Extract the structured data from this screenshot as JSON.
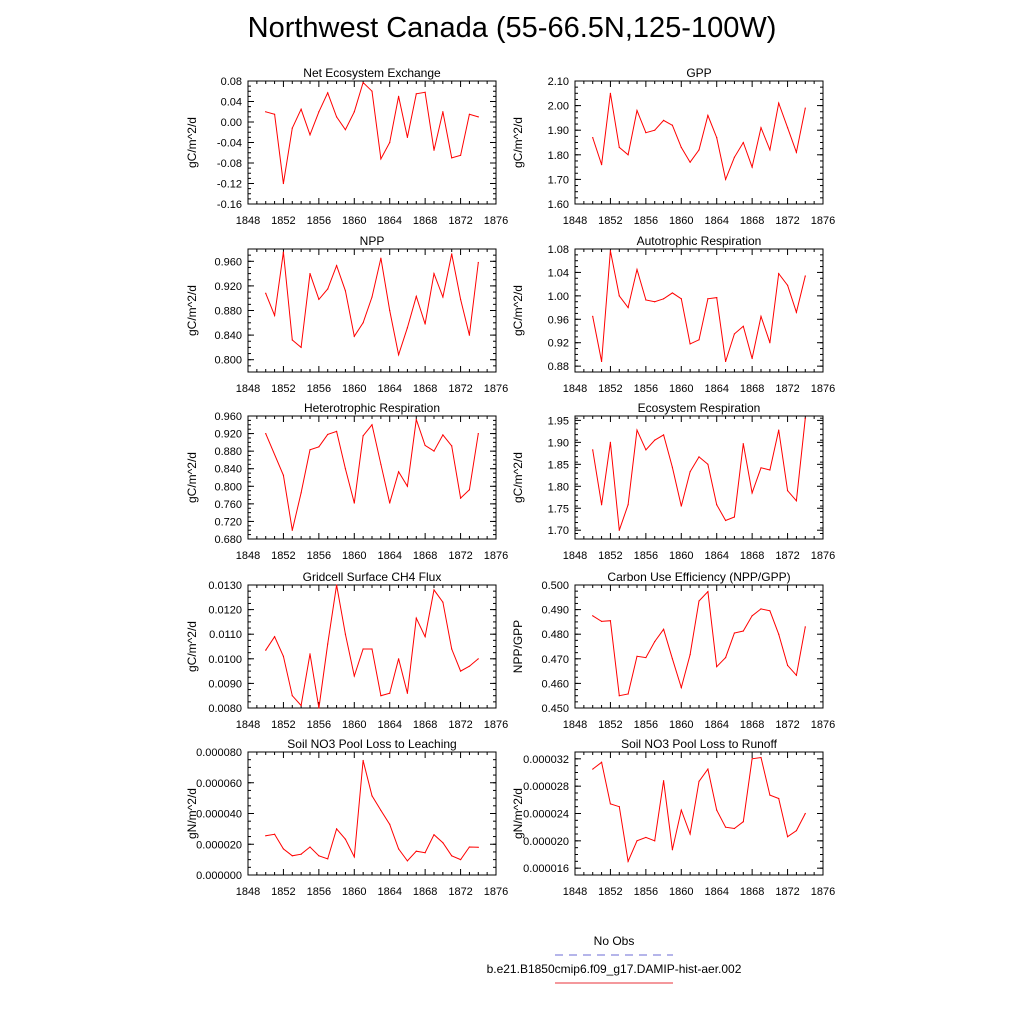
{
  "title": "Northwest Canada (55-66.5N,125-100W)",
  "legend": {
    "entries": [
      {
        "label": "No Obs",
        "color": "#6b6bd6",
        "dash": "dashed"
      },
      {
        "label": "b.e21.B1850cmip6.f09_g17.DAMIP-hist-aer.002",
        "color": "#e8303a",
        "dash": "solid"
      }
    ]
  },
  "chart_data": [
    {
      "type": "line",
      "title": "Net Ecosystem Exchange",
      "ylabel": "gC/m^2/d",
      "xlim": [
        1848,
        1876
      ],
      "xticks": [
        1848,
        1852,
        1856,
        1860,
        1864,
        1868,
        1872,
        1876
      ],
      "ylim": [
        -0.16,
        0.08
      ],
      "yticks": [
        "-0.16",
        "-0.12",
        "-0.08",
        "-0.04",
        "0.00",
        "0.04",
        "0.08"
      ],
      "series": [
        {
          "color": "#ff0000",
          "x": [
            1850,
            1851,
            1852,
            1853,
            1854,
            1855,
            1856,
            1857,
            1858,
            1859,
            1860,
            1861,
            1862,
            1863,
            1864,
            1865,
            1866,
            1867,
            1868,
            1869,
            1870,
            1871,
            1872,
            1873,
            1874
          ],
          "values": [
            0.02,
            0.015,
            -0.12,
            -0.012,
            0.025,
            -0.025,
            0.02,
            0.057,
            0.01,
            -0.015,
            0.02,
            0.077,
            0.06,
            -0.072,
            -0.04,
            0.05,
            -0.03,
            0.055,
            0.058,
            -0.055,
            0.02,
            -0.07,
            -0.065,
            0.015,
            0.01
          ]
        }
      ]
    },
    {
      "type": "line",
      "title": "GPP",
      "ylabel": "gC/m^2/d",
      "xlim": [
        1848,
        1876
      ],
      "xticks": [
        1848,
        1852,
        1856,
        1860,
        1864,
        1868,
        1872,
        1876
      ],
      "ylim": [
        1.6,
        2.1
      ],
      "yticks": [
        "1.60",
        "1.70",
        "1.80",
        "1.90",
        "2.00",
        "2.10"
      ],
      "series": [
        {
          "color": "#ff0000",
          "x": [
            1850,
            1851,
            1852,
            1853,
            1854,
            1855,
            1856,
            1857,
            1858,
            1859,
            1860,
            1861,
            1862,
            1863,
            1864,
            1865,
            1866,
            1867,
            1868,
            1869,
            1870,
            1871,
            1872,
            1873,
            1874
          ],
          "values": [
            1.87,
            1.76,
            2.05,
            1.83,
            1.8,
            1.98,
            1.89,
            1.9,
            1.94,
            1.92,
            1.83,
            1.77,
            1.82,
            1.96,
            1.87,
            1.7,
            1.79,
            1.85,
            1.75,
            1.91,
            1.82,
            2.01,
            1.91,
            1.81,
            1.99
          ]
        }
      ]
    },
    {
      "type": "line",
      "title": "NPP",
      "ylabel": "gC/m^2/d",
      "xlim": [
        1848,
        1876
      ],
      "xticks": [
        1848,
        1852,
        1856,
        1860,
        1864,
        1868,
        1872,
        1876
      ],
      "ylim": [
        0.78,
        0.98
      ],
      "yticks": [
        "0.800",
        "0.840",
        "0.880",
        "0.920",
        "0.960"
      ],
      "series": [
        {
          "color": "#ff0000",
          "x": [
            1850,
            1851,
            1852,
            1853,
            1854,
            1855,
            1856,
            1857,
            1858,
            1859,
            1860,
            1861,
            1862,
            1863,
            1864,
            1865,
            1866,
            1867,
            1868,
            1869,
            1870,
            1871,
            1872,
            1873,
            1874
          ],
          "values": [
            0.908,
            0.872,
            0.975,
            0.832,
            0.82,
            0.94,
            0.898,
            0.915,
            0.953,
            0.912,
            0.838,
            0.86,
            0.902,
            0.965,
            0.88,
            0.808,
            0.852,
            0.903,
            0.858,
            0.94,
            0.902,
            0.972,
            0.898,
            0.84,
            0.958
          ]
        }
      ]
    },
    {
      "type": "line",
      "title": "Autotrophic Respiration",
      "ylabel": "gC/m^2/d",
      "xlim": [
        1848,
        1876
      ],
      "xticks": [
        1848,
        1852,
        1856,
        1860,
        1864,
        1868,
        1872,
        1876
      ],
      "ylim": [
        0.87,
        1.08
      ],
      "yticks": [
        "0.88",
        "0.92",
        "0.96",
        "1.00",
        "1.04",
        "1.08"
      ],
      "series": [
        {
          "color": "#ff0000",
          "x": [
            1850,
            1851,
            1852,
            1853,
            1854,
            1855,
            1856,
            1857,
            1858,
            1859,
            1860,
            1861,
            1862,
            1863,
            1864,
            1865,
            1866,
            1867,
            1868,
            1869,
            1870,
            1871,
            1872,
            1873,
            1874
          ],
          "values": [
            0.965,
            0.888,
            1.077,
            1.0,
            0.98,
            1.045,
            0.993,
            0.99,
            0.995,
            1.005,
            0.995,
            0.918,
            0.925,
            0.995,
            0.997,
            0.888,
            0.935,
            0.948,
            0.893,
            0.965,
            0.92,
            1.038,
            1.018,
            0.972,
            1.034
          ]
        }
      ]
    },
    {
      "type": "line",
      "title": "Heterotrophic Respiration",
      "ylabel": "gC/m^2/d",
      "xlim": [
        1848,
        1876
      ],
      "xticks": [
        1848,
        1852,
        1856,
        1860,
        1864,
        1868,
        1872,
        1876
      ],
      "ylim": [
        0.68,
        0.96
      ],
      "yticks": [
        "0.680",
        "0.720",
        "0.760",
        "0.800",
        "0.840",
        "0.880",
        "0.920",
        "0.960"
      ],
      "series": [
        {
          "color": "#ff0000",
          "x": [
            1850,
            1852,
            1853,
            1854,
            1855,
            1856,
            1857,
            1858,
            1859,
            1860,
            1861,
            1862,
            1863,
            1864,
            1865,
            1866,
            1867,
            1868,
            1869,
            1870,
            1871,
            1872,
            1873,
            1874
          ],
          "values": [
            0.92,
            0.825,
            0.7,
            0.785,
            0.883,
            0.89,
            0.918,
            0.925,
            0.84,
            0.762,
            0.915,
            0.94,
            0.85,
            0.762,
            0.833,
            0.8,
            0.952,
            0.893,
            0.88,
            0.917,
            0.892,
            0.773,
            0.792,
            0.92
          ]
        }
      ]
    },
    {
      "type": "line",
      "title": "Ecosystem Respiration",
      "ylabel": "gC/m^2/d",
      "xlim": [
        1848,
        1876
      ],
      "xticks": [
        1848,
        1852,
        1856,
        1860,
        1864,
        1868,
        1872,
        1876
      ],
      "ylim": [
        1.68,
        1.96
      ],
      "yticks": [
        "1.70",
        "1.75",
        "1.80",
        "1.85",
        "1.90",
        "1.95"
      ],
      "series": [
        {
          "color": "#ff0000",
          "x": [
            1850,
            1851,
            1852,
            1853,
            1854,
            1855,
            1856,
            1857,
            1858,
            1859,
            1860,
            1861,
            1862,
            1863,
            1864,
            1865,
            1866,
            1867,
            1868,
            1869,
            1870,
            1871,
            1872,
            1873,
            1874
          ],
          "values": [
            1.883,
            1.758,
            1.9,
            1.7,
            1.758,
            1.928,
            1.883,
            1.905,
            1.917,
            1.843,
            1.755,
            1.833,
            1.867,
            1.85,
            1.758,
            1.722,
            1.73,
            1.897,
            1.785,
            1.842,
            1.837,
            1.928,
            1.79,
            1.767,
            1.955
          ]
        }
      ]
    },
    {
      "type": "line",
      "title": "Gridcell Surface CH4 Flux",
      "ylabel": "gC/m^2/d",
      "xlim": [
        1848,
        1876
      ],
      "xticks": [
        1848,
        1852,
        1856,
        1860,
        1864,
        1868,
        1872,
        1876
      ],
      "ylim": [
        0.008,
        0.013
      ],
      "yticks": [
        "0.0080",
        "0.0090",
        "0.0100",
        "0.0110",
        "0.0120",
        "0.0130"
      ],
      "series": [
        {
          "color": "#ff0000",
          "x": [
            1850,
            1851,
            1852,
            1853,
            1854,
            1855,
            1856,
            1857,
            1858,
            1859,
            1860,
            1861,
            1862,
            1863,
            1864,
            1865,
            1866,
            1867,
            1868,
            1869,
            1870,
            1871,
            1872,
            1873,
            1874
          ],
          "values": [
            0.01035,
            0.0109,
            0.0101,
            0.0085,
            0.0081,
            0.0102,
            0.008,
            0.0106,
            0.013,
            0.011,
            0.0093,
            0.0104,
            0.0104,
            0.0085,
            0.0086,
            0.01,
            0.0086,
            0.01165,
            0.0109,
            0.0128,
            0.0123,
            0.0104,
            0.0095,
            0.0097,
            0.01
          ]
        }
      ]
    },
    {
      "type": "line",
      "title": "Carbon Use Efficiency (NPP/GPP)",
      "ylabel": "NPP/GPP",
      "xlim": [
        1848,
        1876
      ],
      "xticks": [
        1848,
        1852,
        1856,
        1860,
        1864,
        1868,
        1872,
        1876
      ],
      "ylim": [
        0.45,
        0.5
      ],
      "yticks": [
        "0.450",
        "0.460",
        "0.470",
        "0.480",
        "0.490",
        "0.500"
      ],
      "series": [
        {
          "color": "#ff0000",
          "x": [
            1850,
            1851,
            1852,
            1853,
            1854,
            1855,
            1856,
            1857,
            1858,
            1859,
            1860,
            1861,
            1862,
            1863,
            1864,
            1865,
            1866,
            1867,
            1868,
            1869,
            1870,
            1871,
            1872,
            1873,
            1874
          ],
          "values": [
            0.4875,
            0.4852,
            0.4855,
            0.455,
            0.4557,
            0.471,
            0.4705,
            0.477,
            0.482,
            0.47,
            0.4583,
            0.4717,
            0.4935,
            0.4973,
            0.4668,
            0.4705,
            0.4805,
            0.4813,
            0.4875,
            0.4903,
            0.4895,
            0.48,
            0.4673,
            0.4633,
            0.483
          ]
        }
      ]
    },
    {
      "type": "line",
      "title": "Soil NO3 Pool Loss to Leaching",
      "ylabel": "gN/m^2/d",
      "xlim": [
        1848,
        1876
      ],
      "xticks": [
        1848,
        1852,
        1856,
        1860,
        1864,
        1868,
        1872,
        1876
      ],
      "ylim": [
        0.0,
        8e-05
      ],
      "yticks": [
        "0.000000",
        "0.000020",
        "0.000040",
        "0.000060",
        "0.000080"
      ],
      "series": [
        {
          "color": "#ff0000",
          "x": [
            1850,
            1851,
            1852,
            1853,
            1854,
            1855,
            1856,
            1857,
            1858,
            1859,
            1860,
            1861,
            1862,
            1863,
            1864,
            1865,
            1866,
            1867,
            1868,
            1869,
            1870,
            1871,
            1872,
            1873,
            1874
          ],
          "values": [
            2.55e-05,
            2.65e-05,
            1.7e-05,
            1.25e-05,
            1.35e-05,
            1.82e-05,
            1.25e-05,
            1.05e-05,
            3e-05,
            2.33e-05,
            1.18e-05,
            7.45e-05,
            5.15e-05,
            4.2e-05,
            3.3e-05,
            1.7e-05,
            9.2e-06,
            1.55e-05,
            1.45e-05,
            2.62e-05,
            2.1e-05,
            1.25e-05,
            1e-05,
            1.82e-05,
            1.8e-05
          ]
        }
      ]
    },
    {
      "type": "line",
      "title": "Soil NO3 Pool Loss to Runoff",
      "ylabel": "gN/m^2/d",
      "xlim": [
        1848,
        1876
      ],
      "xticks": [
        1848,
        1852,
        1856,
        1860,
        1864,
        1868,
        1872,
        1876
      ],
      "ylim": [
        1.5e-05,
        3.3e-05
      ],
      "yticks": [
        "0.000016",
        "0.000020",
        "0.000024",
        "0.000028",
        "0.000032"
      ],
      "series": [
        {
          "color": "#ff0000",
          "x": [
            1850,
            1851,
            1852,
            1853,
            1854,
            1855,
            1856,
            1857,
            1858,
            1859,
            1860,
            1861,
            1862,
            1863,
            1864,
            1865,
            1866,
            1867,
            1868,
            1869,
            1870,
            1871,
            1872,
            1873,
            1874
          ],
          "values": [
            3.05e-05,
            3.15e-05,
            2.54e-05,
            2.5e-05,
            1.7e-05,
            2e-05,
            2.05e-05,
            2e-05,
            2.88e-05,
            1.87e-05,
            2.45e-05,
            2.1e-05,
            2.87e-05,
            3.05e-05,
            2.45e-05,
            2.2e-05,
            2.18e-05,
            2.28e-05,
            3.2e-05,
            3.22e-05,
            2.67e-05,
            2.62e-05,
            2.06e-05,
            2.15e-05,
            2.4e-05
          ]
        }
      ]
    }
  ]
}
